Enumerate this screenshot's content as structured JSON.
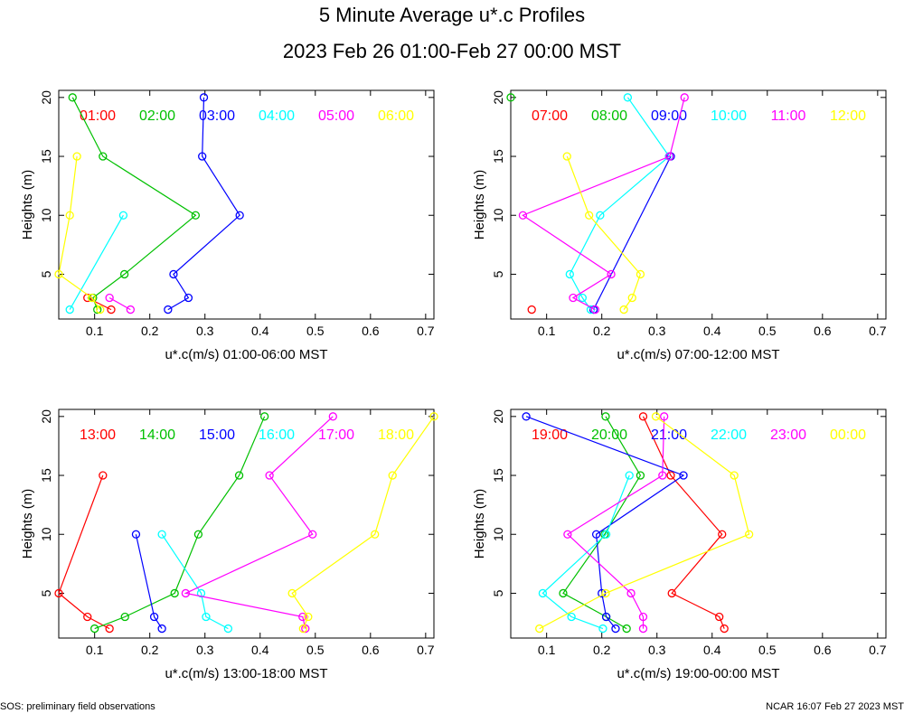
{
  "title": "5 Minute Average u*.c Profiles",
  "subtitle": "2023 Feb 26 01:00-Feb 27 00:00 MST",
  "footer_left": "SOS: preliminary field observations",
  "footer_right": "NCAR 16:07 Feb 27 2023 MST",
  "chart_data": [
    {
      "type": "line",
      "xlabel": "u*.c(m/s) 01:00-06:00 MST",
      "ylabel": "Heights (m)",
      "xlim": [
        0.035,
        0.715
      ],
      "ylim": [
        1.2,
        20.6
      ],
      "xticks": [
        "0.1",
        "0.2",
        "0.3",
        "0.4",
        "0.5",
        "0.6",
        "0.7"
      ],
      "yticks": [
        "5",
        "10",
        "15",
        "20"
      ],
      "series": [
        {
          "name": "01:00",
          "color": "#ff0000",
          "points": [
            [
              0.13,
              2
            ],
            [
              0.087,
              3
            ]
          ]
        },
        {
          "name": "02:00",
          "color": "#00c000",
          "points": [
            [
              0.105,
              2
            ],
            [
              0.097,
              3
            ],
            [
              0.154,
              5
            ],
            [
              0.283,
              10
            ],
            [
              0.115,
              15
            ],
            [
              0.06,
              20
            ]
          ]
        },
        {
          "name": "03:00",
          "color": "#0000ff",
          "points": [
            [
              0.233,
              2
            ],
            [
              0.27,
              3
            ],
            [
              0.243,
              5
            ],
            [
              0.363,
              10
            ],
            [
              0.295,
              15
            ],
            [
              0.298,
              20
            ]
          ]
        },
        {
          "name": "04:00",
          "color": "#00ffff",
          "points": [
            [
              0.055,
              2
            ],
            [
              0.152,
              10
            ]
          ]
        },
        {
          "name": "05:00",
          "color": "#ff00ff",
          "points": [
            [
              0.165,
              2
            ],
            [
              0.127,
              3
            ]
          ]
        },
        {
          "name": "06:00",
          "color": "#ffff00",
          "points": [
            [
              0.11,
              2
            ],
            [
              0.095,
              3
            ],
            [
              0.035,
              5
            ],
            [
              0.055,
              10
            ],
            [
              0.068,
              15
            ]
          ]
        }
      ]
    },
    {
      "type": "line",
      "xlabel": "u*.c(m/s) 07:00-12:00 MST",
      "ylabel": "Heights (m)",
      "xlim": [
        0.035,
        0.715
      ],
      "ylim": [
        1.2,
        20.6
      ],
      "xticks": [
        "0.1",
        "0.2",
        "0.3",
        "0.4",
        "0.5",
        "0.6",
        "0.7"
      ],
      "yticks": [
        "5",
        "10",
        "15",
        "20"
      ],
      "series": [
        {
          "name": "07:00",
          "color": "#ff0000",
          "points": [
            [
              0.073,
              2
            ]
          ]
        },
        {
          "name": "08:00",
          "color": "#00c000",
          "points": [
            [
              0.035,
              20
            ]
          ]
        },
        {
          "name": "09:00",
          "color": "#0000ff",
          "points": [
            [
              0.185,
              2
            ],
            [
              0.325,
              15
            ]
          ]
        },
        {
          "name": "10:00",
          "color": "#00ffff",
          "points": [
            [
              0.18,
              2
            ],
            [
              0.165,
              3
            ],
            [
              0.142,
              5
            ],
            [
              0.197,
              10
            ],
            [
              0.322,
              15
            ],
            [
              0.247,
              20
            ]
          ]
        },
        {
          "name": "11:00",
          "color": "#ff00ff",
          "points": [
            [
              0.188,
              2
            ],
            [
              0.148,
              3
            ],
            [
              0.217,
              5
            ],
            [
              0.057,
              10
            ],
            [
              0.323,
              15
            ],
            [
              0.35,
              20
            ]
          ]
        },
        {
          "name": "12:00",
          "color": "#ffff00",
          "points": [
            [
              0.24,
              2
            ],
            [
              0.255,
              3
            ],
            [
              0.27,
              5
            ],
            [
              0.177,
              10
            ],
            [
              0.137,
              15
            ]
          ]
        }
      ]
    },
    {
      "type": "line",
      "xlabel": "u*.c(m/s) 13:00-18:00 MST",
      "ylabel": "Heights (m)",
      "xlim": [
        0.035,
        0.715
      ],
      "ylim": [
        1.2,
        20.6
      ],
      "xticks": [
        "0.1",
        "0.2",
        "0.3",
        "0.4",
        "0.5",
        "0.6",
        "0.7"
      ],
      "yticks": [
        "5",
        "10",
        "15",
        "20"
      ],
      "series": [
        {
          "name": "13:00",
          "color": "#ff0000",
          "points": [
            [
              0.127,
              2
            ],
            [
              0.087,
              3
            ],
            [
              0.035,
              5
            ],
            [
              0.115,
              15
            ]
          ]
        },
        {
          "name": "14:00",
          "color": "#00c000",
          "points": [
            [
              0.1,
              2
            ],
            [
              0.155,
              3
            ],
            [
              0.245,
              5
            ],
            [
              0.288,
              10
            ],
            [
              0.362,
              15
            ],
            [
              0.408,
              20
            ]
          ]
        },
        {
          "name": "15:00",
          "color": "#0000ff",
          "points": [
            [
              0.222,
              2
            ],
            [
              0.208,
              3
            ],
            [
              0.175,
              10
            ]
          ]
        },
        {
          "name": "16:00",
          "color": "#00ffff",
          "points": [
            [
              0.342,
              2
            ],
            [
              0.302,
              3
            ],
            [
              0.293,
              5
            ],
            [
              0.222,
              10
            ]
          ]
        },
        {
          "name": "17:00",
          "color": "#ff00ff",
          "points": [
            [
              0.482,
              2
            ],
            [
              0.477,
              3
            ],
            [
              0.265,
              5
            ],
            [
              0.495,
              10
            ],
            [
              0.417,
              15
            ],
            [
              0.532,
              20
            ]
          ]
        },
        {
          "name": "18:00",
          "color": "#ffff00",
          "points": [
            [
              0.478,
              2
            ],
            [
              0.487,
              3
            ],
            [
              0.458,
              5
            ],
            [
              0.608,
              10
            ],
            [
              0.64,
              15
            ],
            [
              0.715,
              20
            ]
          ]
        }
      ]
    },
    {
      "type": "line",
      "xlabel": "u*.c(m/s) 19:00-00:00 MST",
      "ylabel": "Heights (m)",
      "xlim": [
        0.035,
        0.715
      ],
      "ylim": [
        1.2,
        20.6
      ],
      "xticks": [
        "0.1",
        "0.2",
        "0.3",
        "0.4",
        "0.5",
        "0.6",
        "0.7"
      ],
      "yticks": [
        "5",
        "10",
        "15",
        "20"
      ],
      "series": [
        {
          "name": "19:00",
          "color": "#ff0000",
          "points": [
            [
              0.422,
              2
            ],
            [
              0.413,
              3
            ],
            [
              0.327,
              5
            ],
            [
              0.418,
              10
            ],
            [
              0.325,
              15
            ],
            [
              0.275,
              20
            ]
          ]
        },
        {
          "name": "20:00",
          "color": "#00c000",
          "points": [
            [
              0.245,
              2
            ],
            [
              0.208,
              3
            ],
            [
              0.13,
              5
            ],
            [
              0.205,
              10
            ],
            [
              0.27,
              15
            ],
            [
              0.207,
              20
            ]
          ]
        },
        {
          "name": "21:00",
          "color": "#0000ff",
          "points": [
            [
              0.225,
              2
            ],
            [
              0.208,
              3
            ],
            [
              0.2,
              5
            ],
            [
              0.19,
              10
            ],
            [
              0.348,
              15
            ],
            [
              0.063,
              20
            ]
          ]
        },
        {
          "name": "22:00",
          "color": "#00ffff",
          "points": [
            [
              0.202,
              2
            ],
            [
              0.145,
              3
            ],
            [
              0.093,
              5
            ],
            [
              0.208,
              10
            ],
            [
              0.25,
              15
            ]
          ]
        },
        {
          "name": "23:00",
          "color": "#ff00ff",
          "points": [
            [
              0.275,
              2
            ],
            [
              0.275,
              3
            ],
            [
              0.253,
              5
            ],
            [
              0.138,
              10
            ],
            [
              0.31,
              15
            ],
            [
              0.313,
              20
            ]
          ]
        },
        {
          "name": "00:00",
          "color": "#ffff00",
          "points": [
            [
              0.087,
              2
            ],
            [
              0.207,
              5
            ],
            [
              0.467,
              10
            ],
            [
              0.44,
              15
            ],
            [
              0.298,
              20
            ]
          ]
        }
      ]
    }
  ]
}
